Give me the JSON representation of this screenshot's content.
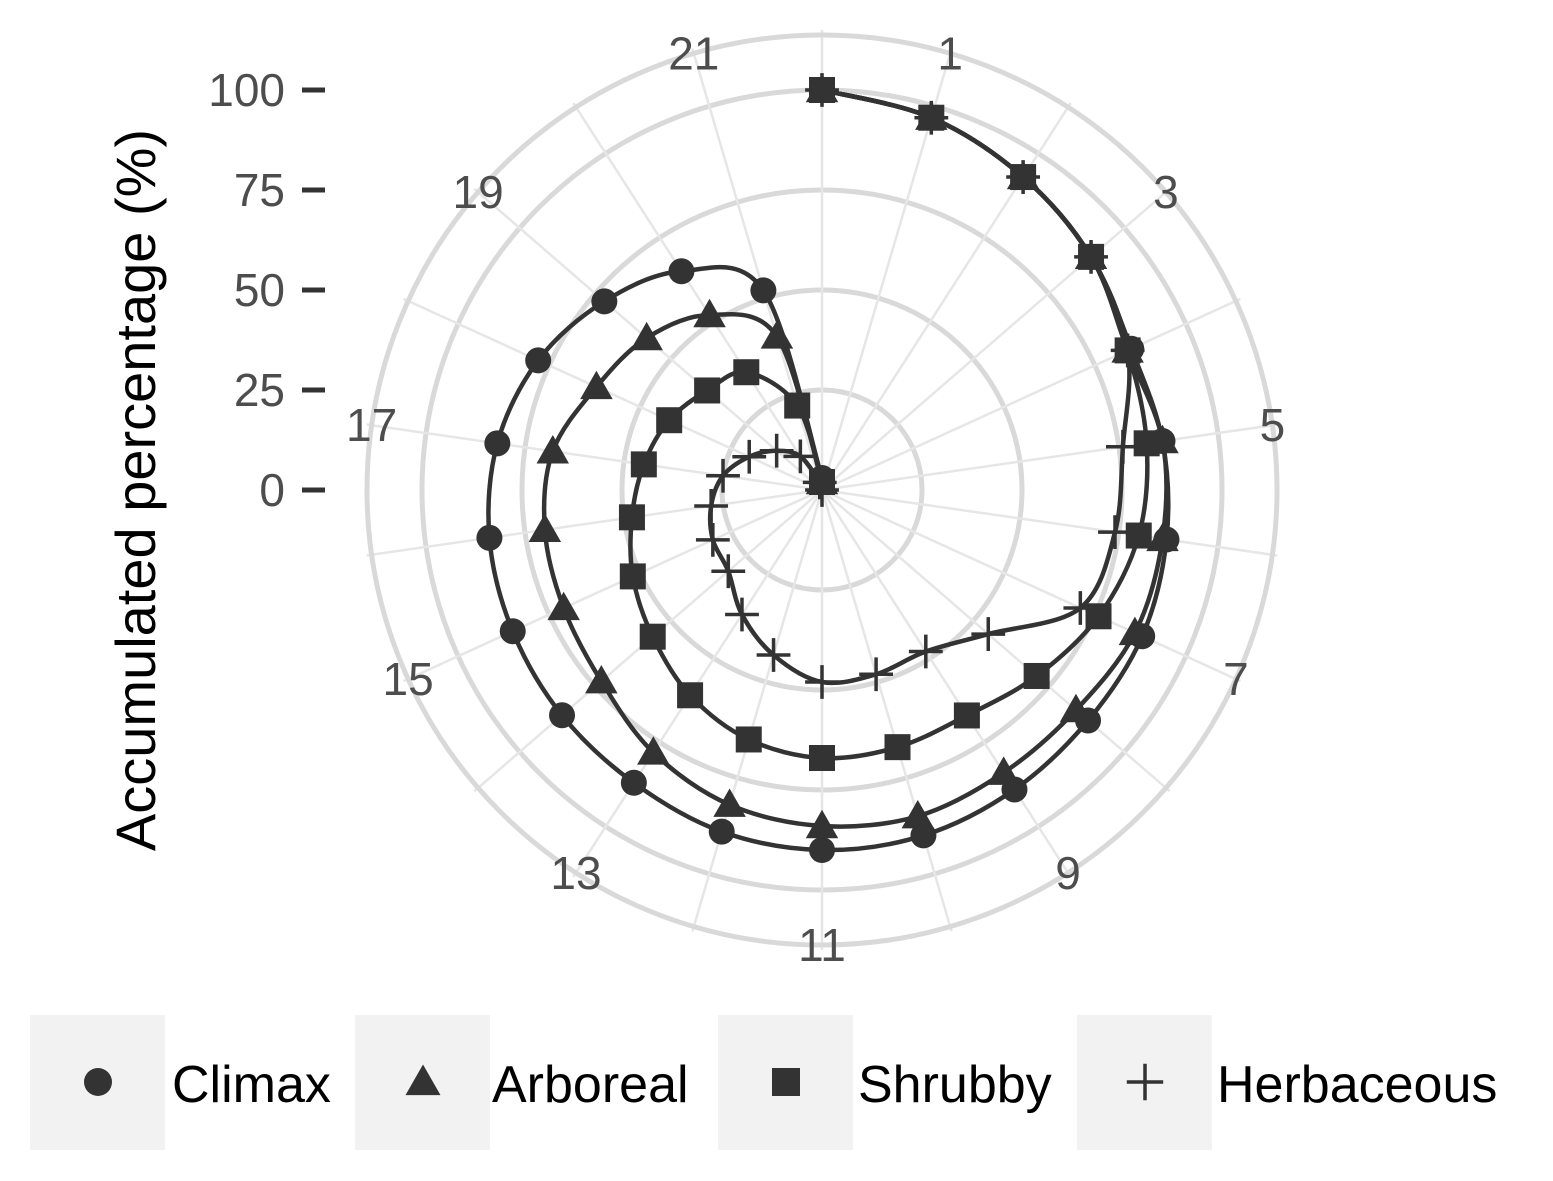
{
  "chart_data": {
    "type": "polar-line",
    "ylabel": "Accumulated percentage (%)",
    "yticks": [
      0,
      25,
      50,
      75,
      100
    ],
    "ylim": [
      0,
      100
    ],
    "angle_positions": 22,
    "angle_labels": [
      "1",
      "3",
      "5",
      "7",
      "9",
      "11",
      "13",
      "15",
      "17",
      "19",
      "21"
    ],
    "angle_label_positions": [
      1,
      3,
      5,
      7,
      9,
      11,
      13,
      15,
      17,
      19,
      21
    ],
    "legend_position": "bottom",
    "series": [
      {
        "name": "Climax",
        "marker": "circle",
        "x": [
          0,
          1,
          2,
          3,
          4,
          5,
          6,
          7,
          8,
          9,
          10,
          11,
          12,
          13,
          14,
          15,
          16,
          17,
          18,
          19,
          20,
          21,
          22
        ],
        "values": [
          100,
          97,
          93,
          89,
          85,
          86,
          87,
          88,
          88,
          89,
          90,
          90,
          89,
          87,
          86,
          85,
          84,
          82,
          78,
          72,
          65,
          52,
          3
        ]
      },
      {
        "name": "Arboreal",
        "marker": "triangle",
        "x": [
          0,
          1,
          2,
          3,
          4,
          5,
          6,
          7,
          8,
          9,
          10,
          11,
          12,
          13,
          14,
          15,
          16,
          17,
          18,
          19,
          20,
          21,
          22
        ],
        "values": [
          100,
          97,
          93,
          89,
          84,
          86,
          86,
          86,
          84,
          84,
          85,
          84,
          82,
          78,
          73,
          71,
          70,
          68,
          62,
          58,
          52,
          40,
          2
        ]
      },
      {
        "name": "Shrubby",
        "marker": "square",
        "x": [
          0,
          1,
          2,
          3,
          4,
          5,
          6,
          7,
          8,
          9,
          10,
          11,
          12,
          13,
          14,
          15,
          16,
          17,
          18,
          19,
          20,
          21,
          22
        ],
        "values": [
          100,
          97,
          93,
          89,
          84,
          82,
          80,
          76,
          71,
          67,
          67,
          67,
          65,
          61,
          56,
          52,
          48,
          45,
          42,
          38,
          35,
          22,
          2
        ]
      },
      {
        "name": "Herbaceous",
        "marker": "plus",
        "x": [
          0,
          1,
          2,
          3,
          4,
          5,
          6,
          7,
          8,
          9,
          10,
          11,
          12,
          13,
          14,
          15,
          16,
          17,
          18,
          19,
          20,
          21,
          22
        ],
        "values": [
          100,
          97,
          93,
          89,
          84,
          76,
          74,
          71,
          55,
          48,
          48,
          48,
          43,
          37,
          31,
          30,
          28,
          25,
          20,
          15,
          10,
          2,
          0
        ]
      }
    ]
  },
  "colors": {
    "series_line": "#333333",
    "grid_major": "#d9d9d9",
    "grid_minor": "#e6e6e6",
    "legend_key_bg": "#f2f2f2",
    "axis_text": "#4d4d4d"
  }
}
